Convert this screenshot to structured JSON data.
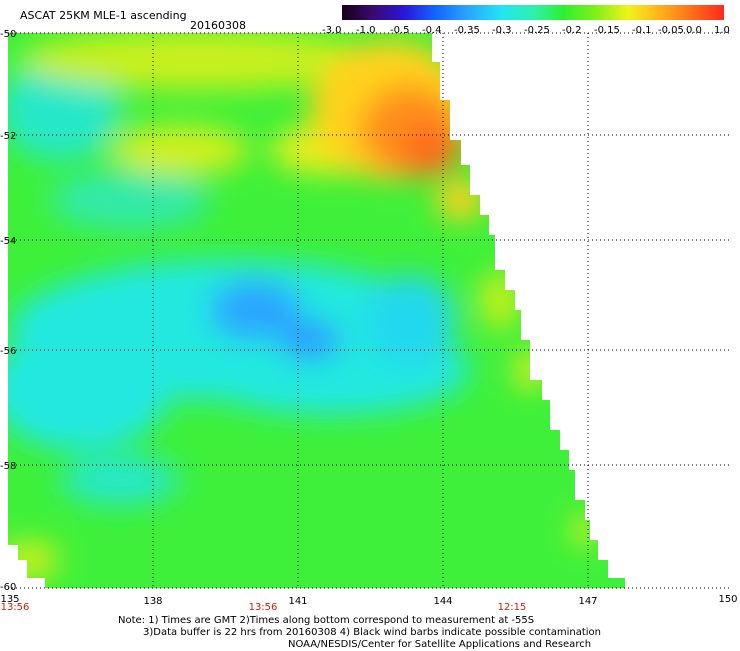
{
  "header": {
    "title": "ASCAT 25KM MLE-1 ascending",
    "date": "20160308"
  },
  "colorbar": {
    "tick_labels": [
      "-3.0",
      "-1.0",
      "-0.5",
      "-0.4",
      "-0.35",
      "-0.3",
      "-0.25",
      "-0.2",
      "-0.15",
      "-0.1",
      "-0.05",
      "0.0",
      "1.0"
    ],
    "colors": [
      "#1a0022",
      "#3a0a6e",
      "#2a14d8",
      "#1460ff",
      "#2aa6ff",
      "#22e6f2",
      "#2ef0b0",
      "#2ef02e",
      "#7cf01a",
      "#f2f21a",
      "#ffb41a",
      "#ff6a1a",
      "#ff2a1a"
    ]
  },
  "axes": {
    "lat_labels": [
      "-50",
      "-52",
      "-54",
      "-56",
      "-58",
      "-60"
    ],
    "lon_labels": [
      "135",
      "138",
      "141",
      "144",
      "147",
      "150"
    ],
    "time_labels": [
      "13:56",
      "13:56",
      "12:15"
    ],
    "time_color": "#cc2200"
  },
  "notes": [
    "Note: 1) Times are GMT 2)Times along bottom correspond to measurement at -55S",
    "3)Data buffer is 22 hrs from 20160308 4) Black wind barbs indicate possible contamination",
    "NOAA/NESDIS/Center for Satellite Applications and Research"
  ]
}
